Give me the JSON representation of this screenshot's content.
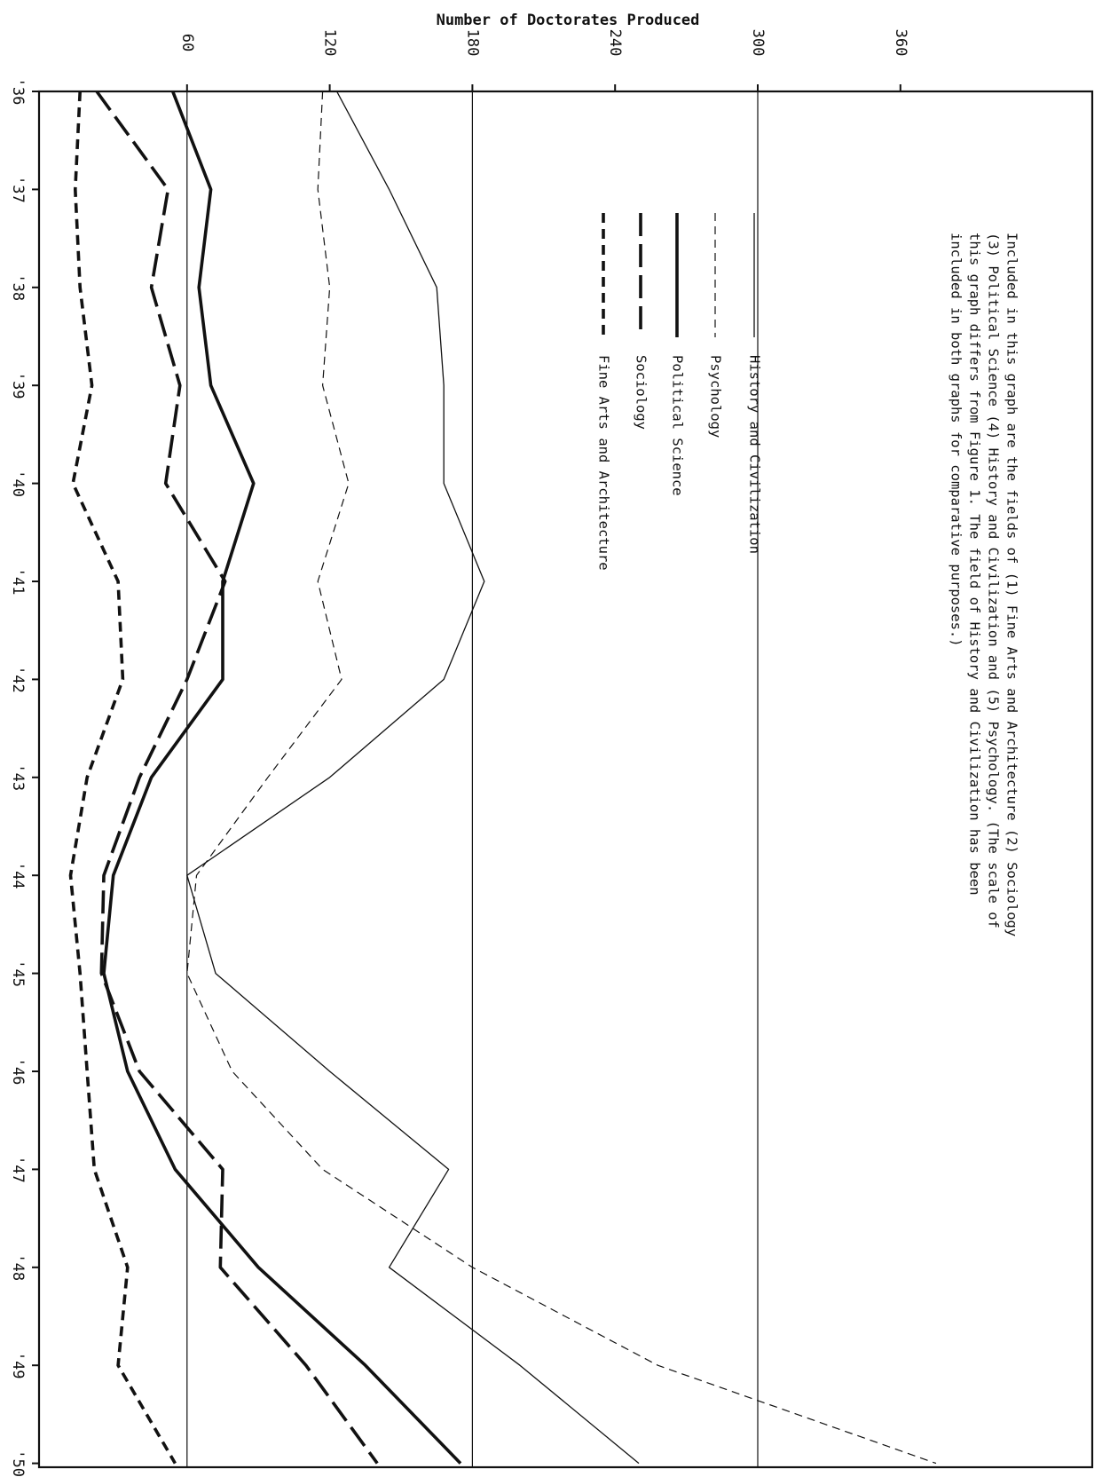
{
  "chart_data": {
    "type": "line",
    "ylabel": "Number of Doctorates Produced",
    "categories": [
      "'36",
      "'37",
      "'38",
      "'39",
      "'40",
      "'41",
      "'42",
      "'43",
      "'44",
      "'45",
      "'46",
      "'47",
      "'48",
      "'49",
      "'50"
    ],
    "y_ticks": [
      "60",
      "120",
      "180",
      "240",
      "300",
      "360"
    ],
    "ylim": [
      -60,
      375
    ],
    "grid_y": [
      60,
      180,
      300
    ],
    "series": [
      {
        "name": "History and Civilization",
        "style": "thin-solid",
        "values": [
          123,
          145,
          165,
          168,
          168,
          185,
          168,
          120,
          60,
          72,
          120,
          170,
          145,
          200,
          250
        ]
      },
      {
        "name": "Psychology",
        "style": "thin-dashed",
        "values": [
          117,
          115,
          120,
          117,
          128,
          115,
          125,
          94,
          64,
          60,
          79,
          117,
          180,
          258,
          375
        ]
      },
      {
        "name": "Political Science",
        "style": "thick-solid",
        "values": [
          54,
          70,
          65,
          70,
          88,
          75,
          75,
          45,
          29,
          25,
          35,
          55,
          90,
          135,
          175
        ]
      },
      {
        "name": "Sociology",
        "style": "thick-long-dash",
        "values": [
          22,
          52,
          45,
          57,
          51,
          76,
          60,
          40,
          25,
          24,
          40,
          75,
          74,
          110,
          140
        ]
      },
      {
        "name": "Fine Arts and Architecture",
        "style": "thick-short-dash",
        "values": [
          15,
          13,
          15,
          20,
          12,
          31,
          33,
          18,
          11,
          15,
          18,
          21,
          35,
          31,
          55
        ]
      }
    ],
    "legend_position": "upper-right"
  },
  "note": [
    "Included in this graph are the fields of (1) Fine Arts and Architecture (2) Sociology",
    "(3) Political Science (4) History and Civilization and (5) Psychology. (The scale of",
    "this graph differs from Figure 1. The field of History and Civilization has been",
    "included in both graphs for comparative purposes.)"
  ]
}
